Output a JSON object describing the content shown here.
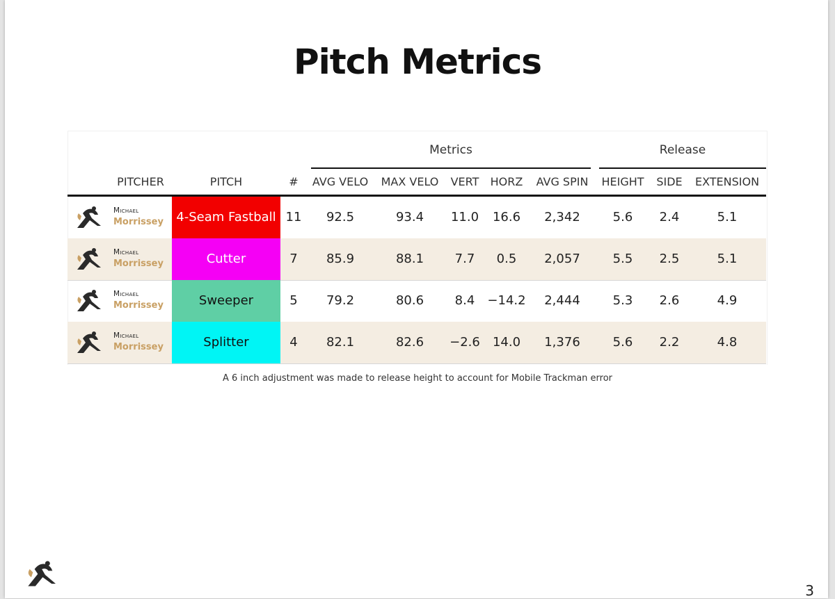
{
  "title": "Pitch Metrics",
  "groups": {
    "metrics": "Metrics",
    "release": "Release"
  },
  "columns": {
    "pitcher": "PITCHER",
    "pitch": "PITCH",
    "count": "#",
    "avg_velo": "AVG VELO",
    "max_velo": "MAX VELO",
    "vert": "VERT",
    "horz": "HORZ",
    "avg_spin": "AVG SPIN",
    "height": "HEIGHT",
    "side": "SIDE",
    "extension": "EXTENSION"
  },
  "rows": [
    {
      "first": "Michael",
      "last": "Morrissey",
      "pitch": "4-Seam Fastball",
      "pitch_color": "#f20000",
      "text_color": "#ffffff",
      "count": "11",
      "avg_velo": "92.5",
      "max_velo": "93.4",
      "vert": "11.0",
      "horz": "16.6",
      "avg_spin": "2,342",
      "height": "5.6",
      "side": "2.4",
      "extension": "5.1"
    },
    {
      "first": "Michael",
      "last": "Morrissey",
      "pitch": "Cutter",
      "pitch_color": "#f500f5",
      "text_color": "#ffffff",
      "count": "7",
      "avg_velo": "85.9",
      "max_velo": "88.1",
      "vert": "7.7",
      "horz": "0.5",
      "avg_spin": "2,057",
      "height": "5.5",
      "side": "2.5",
      "extension": "5.1"
    },
    {
      "first": "Michael",
      "last": "Morrissey",
      "pitch": "Sweeper",
      "pitch_color": "#5fcfa5",
      "text_color": "#111111",
      "count": "5",
      "avg_velo": "79.2",
      "max_velo": "80.6",
      "vert": "8.4",
      "horz": "−14.2",
      "avg_spin": "2,444",
      "height": "5.3",
      "side": "2.6",
      "extension": "4.9"
    },
    {
      "first": "Michael",
      "last": "Morrissey",
      "pitch": "Splitter",
      "pitch_color": "#00f5f5",
      "text_color": "#111111",
      "count": "4",
      "avg_velo": "82.1",
      "max_velo": "82.6",
      "vert": "−2.6",
      "horz": "14.0",
      "avg_spin": "1,376",
      "height": "5.6",
      "side": "2.2",
      "extension": "4.8"
    }
  ],
  "note": "A 6 inch adjustment was made to release height to account for Mobile Trackman error",
  "page_number": "3",
  "icons": {
    "team_logo": "pitcher-silhouette-icon"
  }
}
